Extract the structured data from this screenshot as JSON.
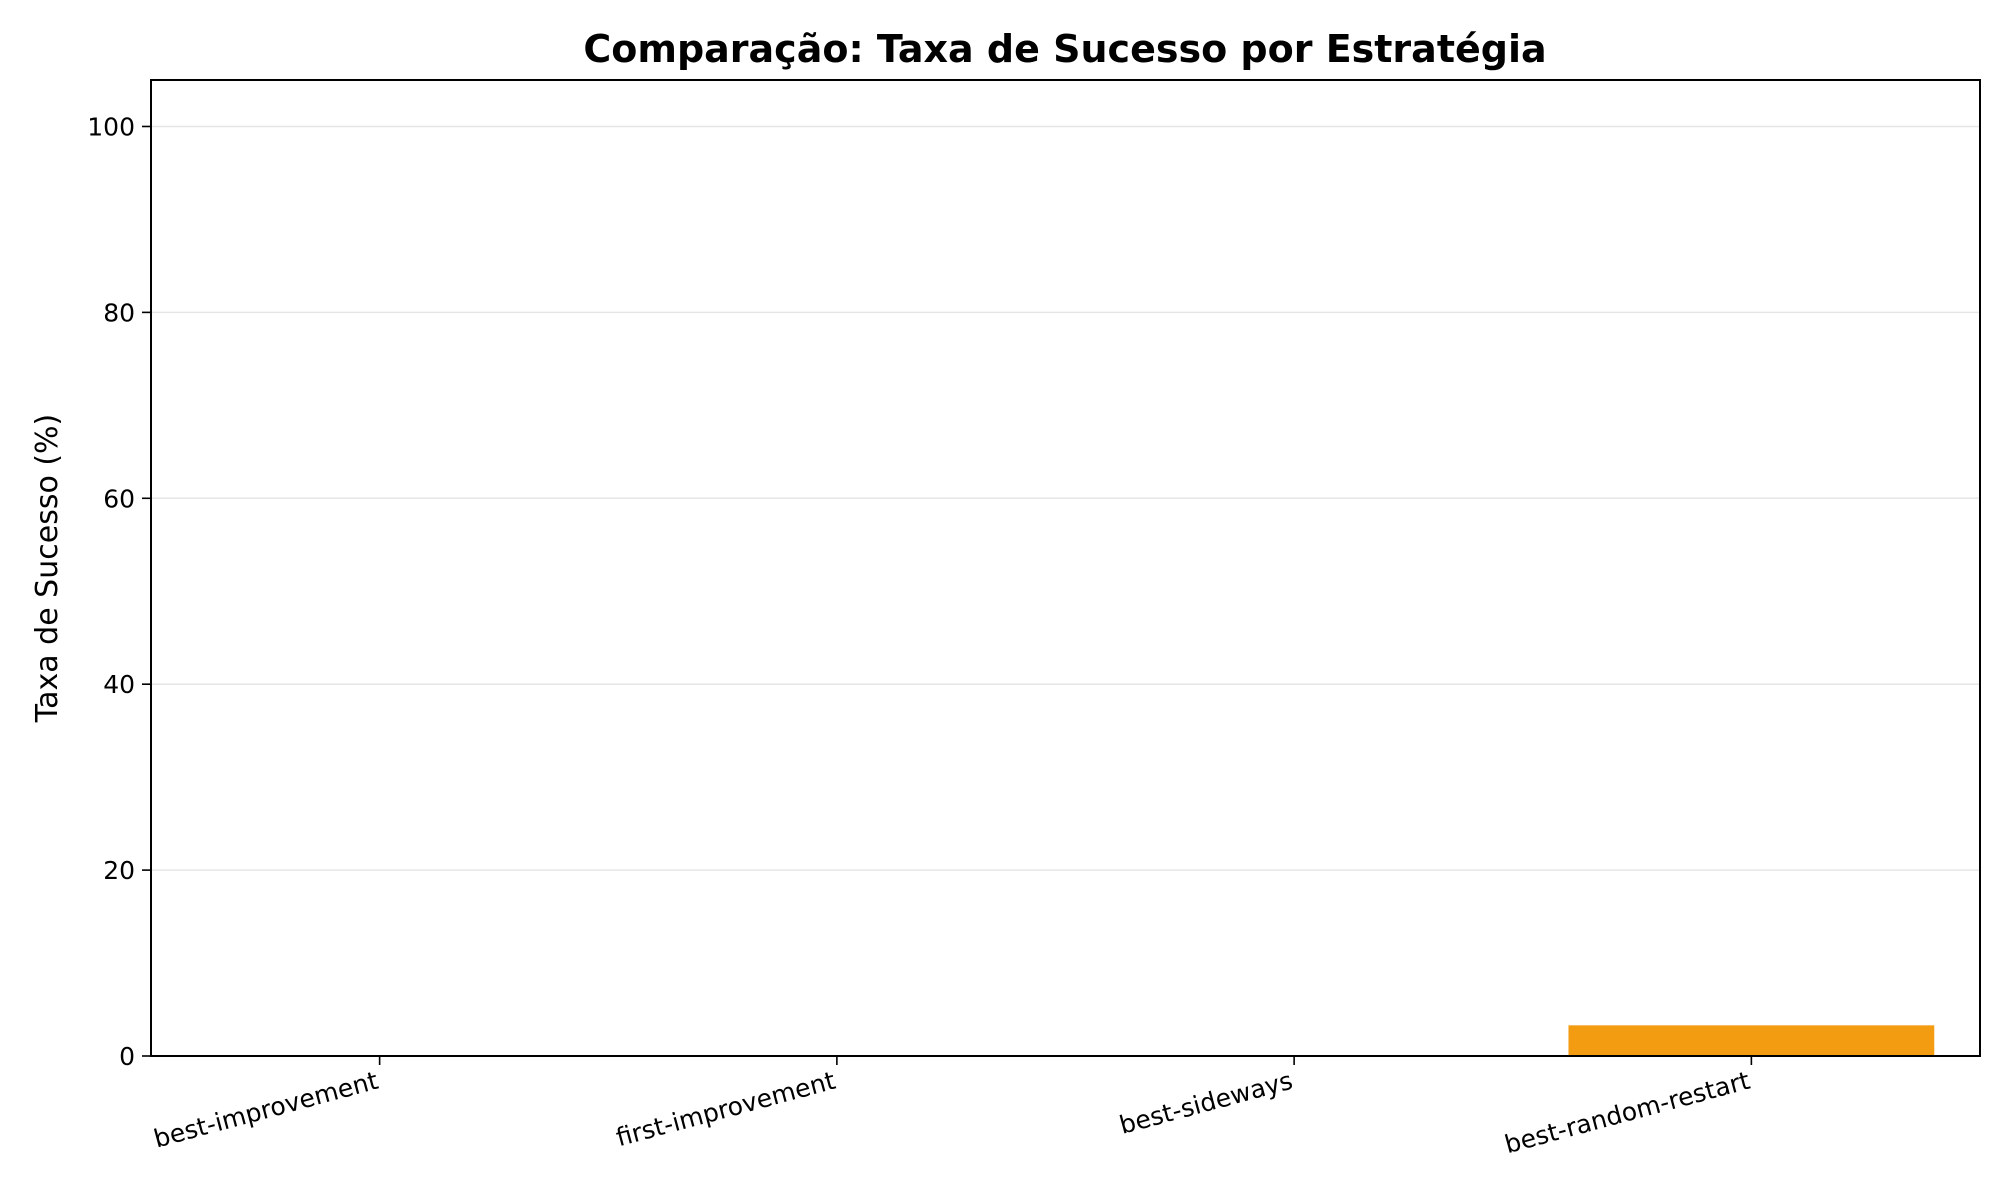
{
  "chart_data": {
    "type": "bar",
    "title": "Comparação: Taxa de Sucesso por Estratégia",
    "xlabel": "",
    "ylabel": "Taxa de Sucesso (%)",
    "categories": [
      "best-improvement",
      "first-improvement",
      "best-sideways",
      "best-random-restart"
    ],
    "values": [
      0,
      0,
      0,
      3.3
    ],
    "colors": [
      "#e74c3c",
      "#3498db",
      "#2ecc71",
      "#f39c12"
    ],
    "ylim": [
      0,
      105
    ],
    "yticks": [
      0,
      20,
      40,
      60,
      80,
      100
    ],
    "grid": "y-axis",
    "legend": "none"
  }
}
